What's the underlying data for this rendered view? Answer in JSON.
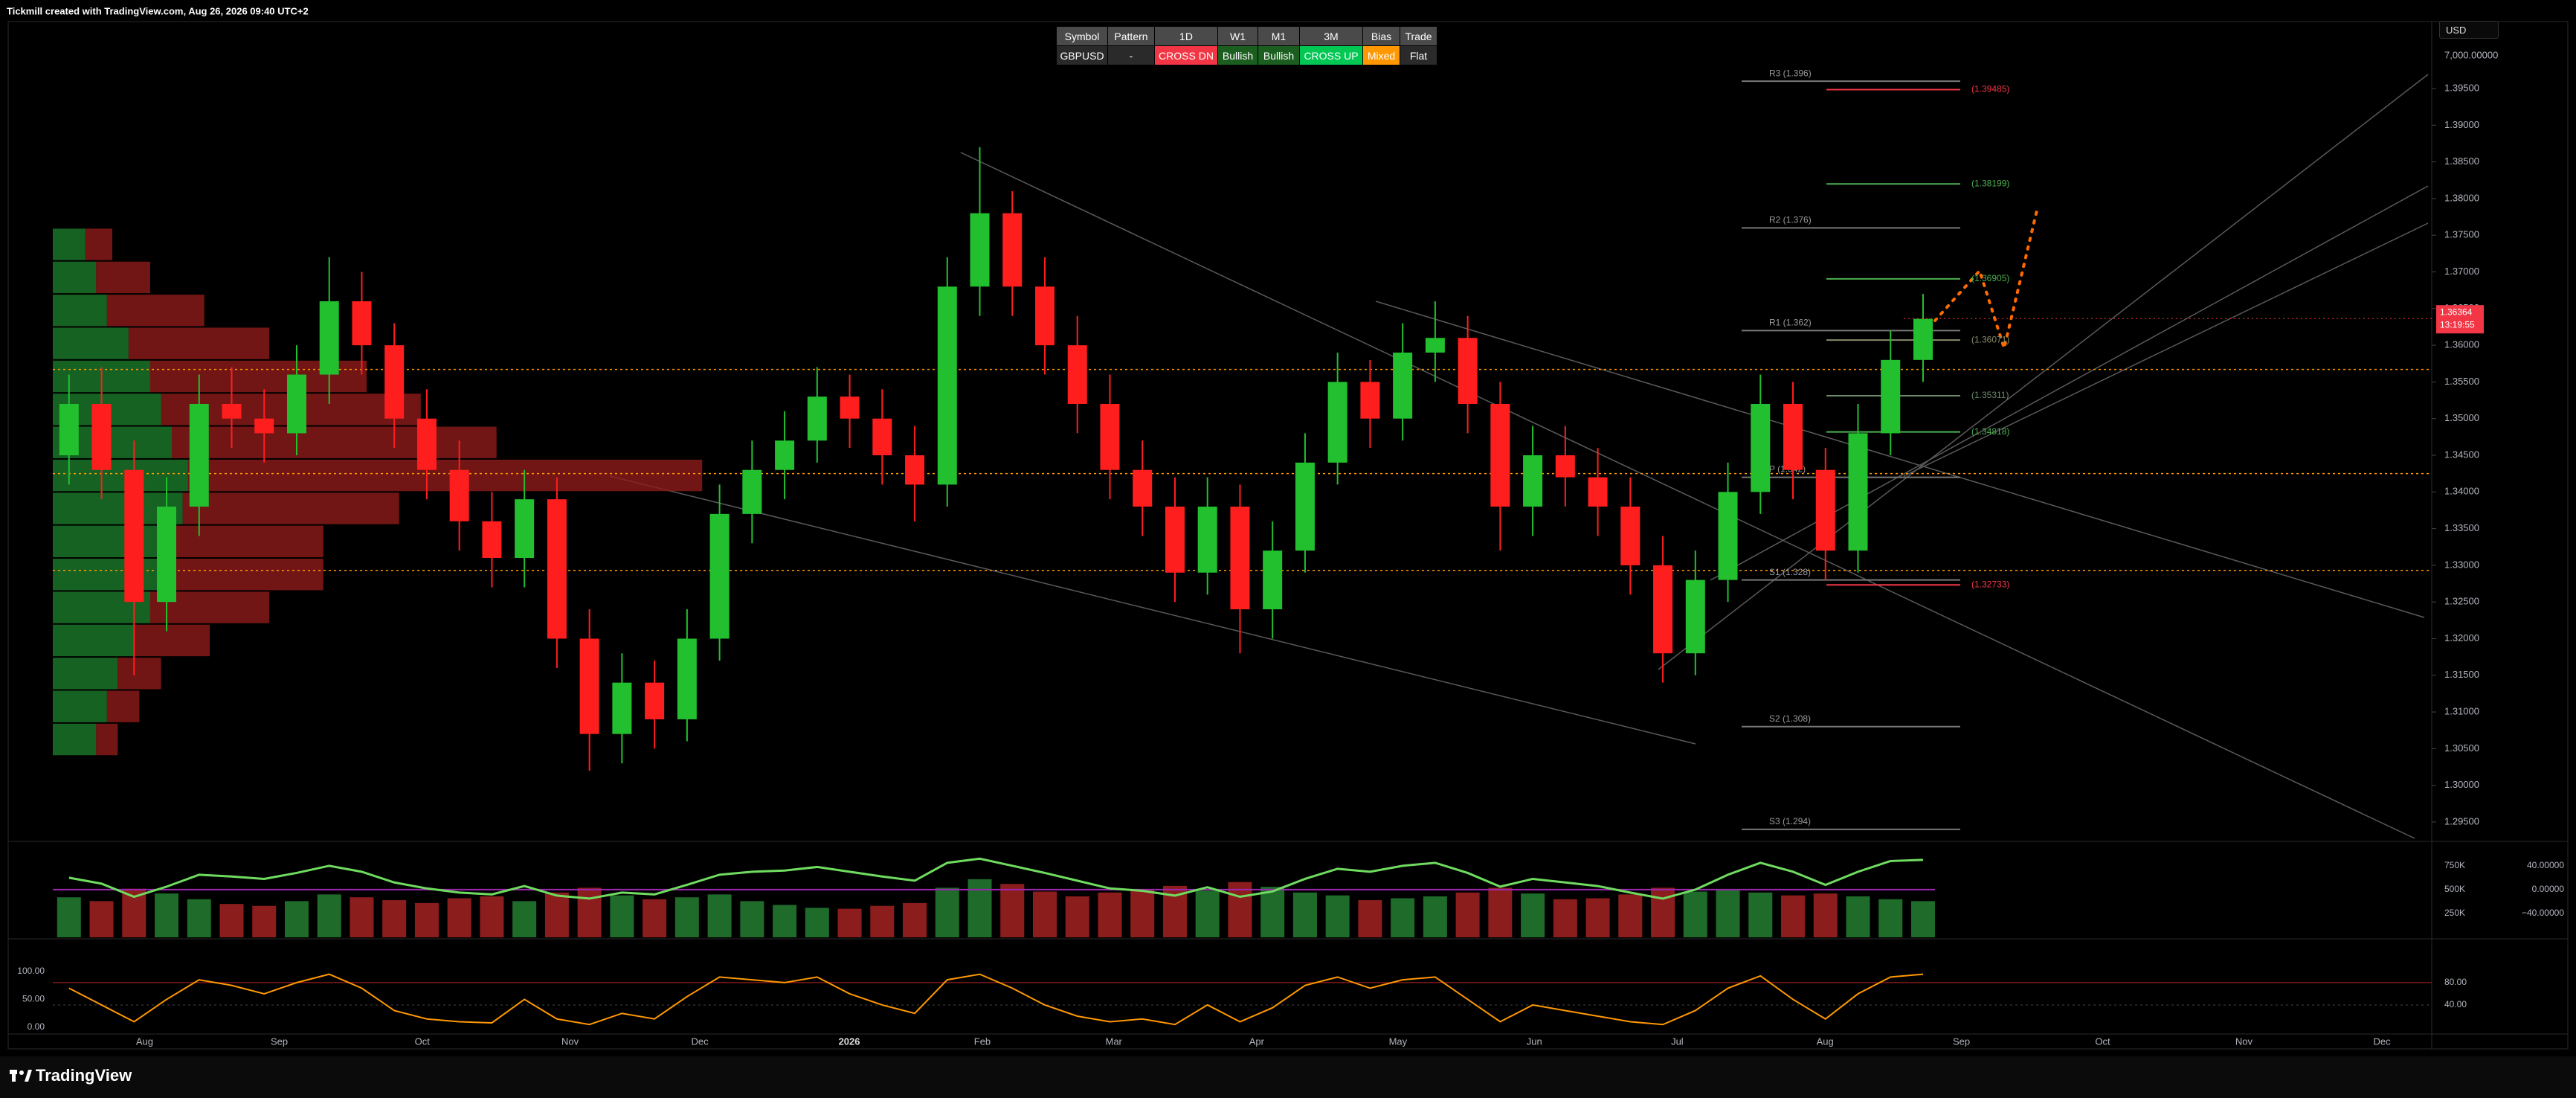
{
  "header": {
    "caption": "Tickmill created with TradingView.com, Aug 26, 2026 09:40 UTC+2",
    "currency": "USD",
    "logo": "TradingView"
  },
  "signal_table": {
    "columns": [
      "Symbol",
      "Pattern",
      "1D",
      "W1",
      "M1",
      "3M",
      "Bias",
      "Trade"
    ],
    "row": [
      "GBPUSD",
      "-",
      "CROSS DN",
      "Bullish",
      "Bullish",
      "CROSS UP",
      "Mixed",
      "Flat"
    ]
  },
  "chart_data": {
    "type": "candlestick",
    "open": [
      1.345,
      1.352,
      1.343,
      1.325,
      1.338,
      1.352,
      1.35,
      1.348,
      1.356,
      1.366,
      1.36,
      1.35,
      1.343,
      1.336,
      1.331,
      1.339,
      1.32,
      1.307,
      1.314,
      1.309,
      1.32,
      1.337,
      1.343,
      1.347,
      1.353,
      1.35,
      1.345,
      1.341,
      1.368,
      1.378,
      1.368,
      1.36,
      1.352,
      1.343,
      1.338,
      1.329,
      1.338,
      1.324,
      1.332,
      1.344,
      1.355,
      1.35,
      1.359,
      1.361,
      1.352,
      1.338,
      1.345,
      1.342,
      1.338,
      1.33,
      1.318,
      1.328,
      1.34,
      1.352,
      1.343,
      1.332,
      1.348,
      1.358
    ],
    "high": [
      1.356,
      1.357,
      1.347,
      1.342,
      1.356,
      1.357,
      1.354,
      1.36,
      1.372,
      1.37,
      1.363,
      1.354,
      1.347,
      1.34,
      1.343,
      1.342,
      1.324,
      1.318,
      1.317,
      1.324,
      1.341,
      1.347,
      1.351,
      1.357,
      1.356,
      1.354,
      1.349,
      1.372,
      1.387,
      1.381,
      1.372,
      1.364,
      1.356,
      1.347,
      1.342,
      1.342,
      1.341,
      1.336,
      1.348,
      1.359,
      1.358,
      1.363,
      1.366,
      1.364,
      1.355,
      1.349,
      1.349,
      1.346,
      1.342,
      1.334,
      1.332,
      1.344,
      1.356,
      1.355,
      1.346,
      1.352,
      1.362,
      1.367
    ],
    "low": [
      1.341,
      1.339,
      1.315,
      1.321,
      1.334,
      1.346,
      1.344,
      1.345,
      1.352,
      1.356,
      1.346,
      1.339,
      1.332,
      1.327,
      1.327,
      1.316,
      1.302,
      1.303,
      1.305,
      1.306,
      1.317,
      1.333,
      1.339,
      1.344,
      1.346,
      1.341,
      1.336,
      1.338,
      1.364,
      1.364,
      1.356,
      1.348,
      1.339,
      1.334,
      1.325,
      1.326,
      1.318,
      1.32,
      1.329,
      1.341,
      1.346,
      1.347,
      1.355,
      1.348,
      1.332,
      1.334,
      1.338,
      1.334,
      1.326,
      1.314,
      1.315,
      1.325,
      1.337,
      1.339,
      1.328,
      1.329,
      1.345,
      1.355
    ],
    "close": [
      1.352,
      1.343,
      1.325,
      1.338,
      1.352,
      1.35,
      1.348,
      1.356,
      1.366,
      1.36,
      1.35,
      1.343,
      1.336,
      1.331,
      1.339,
      1.32,
      1.307,
      1.314,
      1.309,
      1.32,
      1.337,
      1.343,
      1.347,
      1.353,
      1.35,
      1.345,
      1.341,
      1.368,
      1.378,
      1.368,
      1.36,
      1.352,
      1.343,
      1.338,
      1.329,
      1.338,
      1.324,
      1.332,
      1.344,
      1.355,
      1.35,
      1.359,
      1.361,
      1.352,
      1.338,
      1.345,
      1.342,
      1.338,
      1.33,
      1.318,
      1.328,
      1.34,
      1.352,
      1.343,
      1.332,
      1.348,
      1.358,
      1.3636
    ],
    "up_color": "#22c02f",
    "down_color": "#ff1e1e",
    "ylim": [
      1.29236,
      1.40413
    ],
    "yticks": [
      {
        "value": 1.295,
        "label": "1.29500"
      },
      {
        "value": 1.3,
        "label": "1.30000"
      },
      {
        "value": 1.305,
        "label": "1.30500"
      },
      {
        "value": 1.31,
        "label": "1.31000"
      },
      {
        "value": 1.315,
        "label": "1.31500"
      },
      {
        "value": 1.32,
        "label": "1.32000"
      },
      {
        "value": 1.325,
        "label": "1.32500"
      },
      {
        "value": 1.33,
        "label": "1.33000"
      },
      {
        "value": 1.335,
        "label": "1.33500"
      },
      {
        "value": 1.34,
        "label": "1.34000"
      },
      {
        "value": 1.345,
        "label": "1.34500"
      },
      {
        "value": 1.35,
        "label": "1.35000"
      },
      {
        "value": 1.355,
        "label": "1.35500"
      },
      {
        "value": 1.36,
        "label": "1.36000"
      },
      {
        "value": 1.365,
        "label": "1.36500"
      },
      {
        "value": 1.37,
        "label": "1.37000"
      },
      {
        "value": 1.375,
        "label": "1.37500"
      },
      {
        "value": 1.38,
        "label": "1.38000"
      },
      {
        "value": 1.385,
        "label": "1.38500"
      },
      {
        "value": 1.39,
        "label": "1.39000"
      },
      {
        "value": 1.395,
        "label": "1.39500"
      }
    ],
    "axis_top_label": "7,000.00000",
    "time_labels": [
      "Aug",
      "Sep",
      "Oct",
      "Nov",
      "Dec",
      "2026",
      "Feb",
      "Mar",
      "Apr",
      "May",
      "Jun",
      "Jul",
      "Aug",
      "Sep",
      "Oct",
      "Nov",
      "Dec"
    ],
    "last_price": 1.36364,
    "last_price_color": "#f23645",
    "countdown": "13:19:55",
    "hlines": [
      1.3567,
      1.3425,
      1.3293
    ],
    "hline_color": "#ff9800",
    "pivots": [
      {
        "label": "R3 (1.396)",
        "value": 1.396
      },
      {
        "label": "R2 (1.376)",
        "value": 1.376
      },
      {
        "label": "R1 (1.362)",
        "value": 1.362
      },
      {
        "label": "P (1.342)",
        "value": 1.342
      },
      {
        "label": "S1 (1.328)",
        "value": 1.328
      },
      {
        "label": "S2 (1.308)",
        "value": 1.308
      },
      {
        "label": "S3 (1.294)",
        "value": 1.294
      }
    ],
    "targets": [
      {
        "label": "(1.39485)",
        "value": 1.39485,
        "color": "#f23645"
      },
      {
        "label": "(1.38199)",
        "value": 1.38199,
        "color": "#4caf50"
      },
      {
        "label": "(1.36905)",
        "value": 1.36905,
        "color": "#4caf50"
      },
      {
        "label": "(1.36071)",
        "value": 1.36071,
        "color": "#8a8a6a"
      },
      {
        "label": "(1.35311)",
        "value": 1.35311,
        "color": "#6a8a6a"
      },
      {
        "label": "(1.34818)",
        "value": 1.34818,
        "color": "#4caf50"
      },
      {
        "label": "(1.32733)",
        "value": 1.32733,
        "color": "#f23645"
      }
    ],
    "volume_profile": {
      "bins": [
        1.304,
        1.3085,
        1.313,
        1.3175,
        1.322,
        1.3265,
        1.331,
        1.3355,
        1.34,
        1.3445,
        1.349,
        1.3535,
        1.358,
        1.3625,
        1.367,
        1.3715,
        1.376
      ],
      "buy": [
        8,
        10,
        12,
        15,
        18,
        20,
        22,
        24,
        25,
        22,
        20,
        18,
        14,
        10,
        8,
        6
      ],
      "sell": [
        4,
        6,
        8,
        14,
        22,
        30,
        28,
        40,
        95,
        60,
        48,
        40,
        26,
        18,
        10,
        5
      ],
      "buy_color": "#1b7a2a",
      "sell_color": "#8e1a1a",
      "xlim": [
        0,
        130
      ]
    },
    "volume": {
      "values": [
        420000,
        380000,
        510000,
        460000,
        400000,
        350000,
        330000,
        380000,
        450000,
        420000,
        390000,
        360000,
        410000,
        430000,
        380000,
        470000,
        520000,
        440000,
        400000,
        420000,
        450000,
        380000,
        340000,
        310000,
        300000,
        330000,
        360000,
        520000,
        610000,
        560000,
        480000,
        430000,
        470000,
        500000,
        540000,
        490000,
        580000,
        530000,
        470000,
        440000,
        390000,
        410000,
        430000,
        470000,
        520000,
        460000,
        400000,
        410000,
        450000,
        520000,
        480000,
        500000,
        470000,
        440000,
        460000,
        430000,
        400000,
        380000
      ],
      "ylim": [
        0,
        976000
      ],
      "yticks": [
        {
          "value": 750000,
          "label": "750K"
        },
        {
          "value": 500000,
          "label": "500K"
        },
        {
          "value": 250000,
          "label": "250K"
        }
      ]
    },
    "oscillator": {
      "values": [
        20,
        10,
        -12,
        5,
        25,
        22,
        18,
        28,
        40,
        30,
        12,
        2,
        -5,
        -8,
        6,
        -10,
        -15,
        -5,
        -8,
        8,
        25,
        30,
        32,
        38,
        30,
        22,
        15,
        45,
        52,
        40,
        28,
        15,
        2,
        -2,
        -10,
        4,
        -12,
        -3,
        18,
        35,
        30,
        40,
        45,
        28,
        5,
        18,
        12,
        6,
        -5,
        -15,
        0,
        25,
        45,
        30,
        8,
        30,
        48,
        50
      ],
      "color": "#6fdc5f",
      "ylim": [
        -80,
        76
      ],
      "yticks": [
        {
          "value": 40,
          "label": "40.00000"
        },
        {
          "value": 0,
          "label": "0.00000"
        },
        {
          "value": -40,
          "label": "−40.00000"
        }
      ]
    },
    "stochastic": {
      "values": [
        70,
        40,
        10,
        50,
        85,
        75,
        60,
        80,
        95,
        70,
        30,
        15,
        10,
        8,
        50,
        15,
        5,
        25,
        15,
        55,
        90,
        85,
        80,
        90,
        60,
        40,
        25,
        85,
        95,
        70,
        40,
        20,
        10,
        15,
        5,
        40,
        10,
        35,
        75,
        90,
        70,
        85,
        90,
        50,
        10,
        40,
        30,
        20,
        10,
        5,
        30,
        70,
        92,
        50,
        15,
        60,
        90,
        95
      ],
      "color": "#ff9800",
      "ylim": [
        -9.3,
        153
      ],
      "yticks": [
        {
          "value": 100,
          "label": "100.00"
        },
        {
          "value": 50,
          "label": "50.00"
        },
        {
          "value": 0,
          "label": "0.00"
        }
      ],
      "y2ticks": [
        {
          "value": 80,
          "label": "80.00"
        },
        {
          "value": 40,
          "label": "40.00"
        }
      ]
    }
  }
}
